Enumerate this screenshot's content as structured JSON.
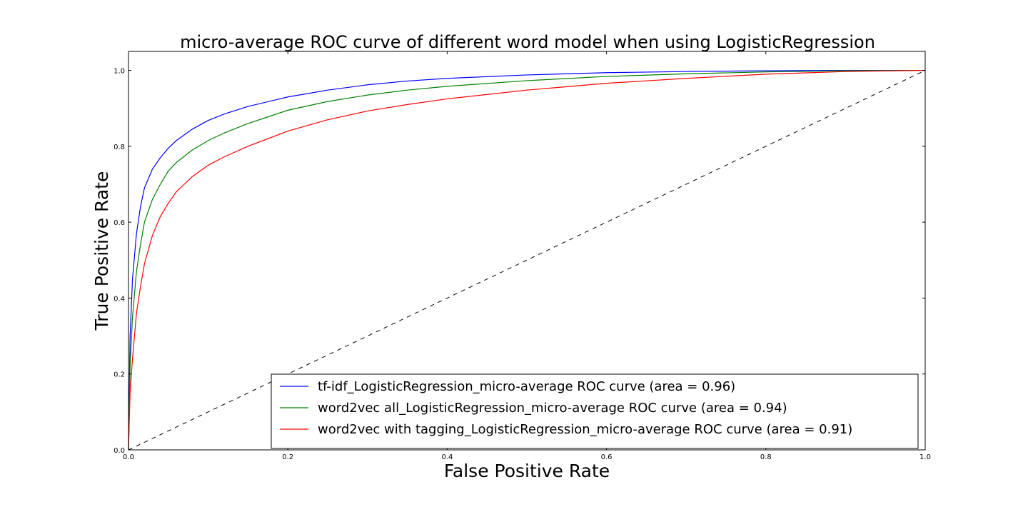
{
  "chart_data": {
    "type": "line",
    "title": "micro-average ROC curve of different word model when using LogisticRegression",
    "xlabel": "False Positive Rate",
    "ylabel": "True Positive Rate",
    "xlim": [
      0.0,
      1.0
    ],
    "ylim": [
      0.0,
      1.05
    ],
    "x_ticks": [
      0.0,
      0.2,
      0.4,
      0.6,
      0.8,
      1.0
    ],
    "y_ticks": [
      0.0,
      0.2,
      0.4,
      0.6,
      0.8,
      1.0
    ],
    "x_tick_labels": [
      "0.0",
      "0.2",
      "0.4",
      "0.6",
      "0.8",
      "1.0"
    ],
    "y_tick_labels": [
      "0.0",
      "0.2",
      "0.4",
      "0.6",
      "0.8",
      "1.0"
    ],
    "grid": false,
    "legend_position": "lower-right",
    "series": [
      {
        "name": "tf-idf_LogisticRegression_micro-average ROC curve (area = 0.96)",
        "color": "#0000ff",
        "x": [
          0.0,
          0.002,
          0.005,
          0.01,
          0.015,
          0.02,
          0.03,
          0.04,
          0.05,
          0.06,
          0.08,
          0.1,
          0.12,
          0.15,
          0.2,
          0.25,
          0.3,
          0.35,
          0.4,
          0.5,
          0.6,
          0.7,
          0.8,
          0.9,
          1.0
        ],
        "y": [
          0.0,
          0.3,
          0.45,
          0.57,
          0.64,
          0.69,
          0.74,
          0.77,
          0.795,
          0.815,
          0.845,
          0.868,
          0.885,
          0.905,
          0.93,
          0.948,
          0.962,
          0.972,
          0.979,
          0.988,
          0.994,
          0.997,
          0.999,
          1.0,
          1.0
        ]
      },
      {
        "name": "word2vec all_LogisticRegression_micro-average ROC curve (area = 0.94)",
        "color": "#008000",
        "x": [
          0.0,
          0.002,
          0.005,
          0.01,
          0.015,
          0.02,
          0.03,
          0.04,
          0.05,
          0.06,
          0.08,
          0.1,
          0.12,
          0.15,
          0.2,
          0.25,
          0.3,
          0.35,
          0.4,
          0.5,
          0.6,
          0.7,
          0.8,
          0.9,
          1.0
        ],
        "y": [
          0.0,
          0.22,
          0.35,
          0.47,
          0.54,
          0.6,
          0.66,
          0.7,
          0.735,
          0.757,
          0.79,
          0.815,
          0.835,
          0.86,
          0.895,
          0.918,
          0.935,
          0.948,
          0.958,
          0.973,
          0.984,
          0.991,
          0.996,
          0.999,
          1.0
        ]
      },
      {
        "name": "word2vec with tagging_LogisticRegression_micro-average ROC curve (area = 0.91)",
        "color": "#ff0000",
        "x": [
          0.0,
          0.002,
          0.005,
          0.01,
          0.015,
          0.02,
          0.03,
          0.04,
          0.05,
          0.06,
          0.08,
          0.1,
          0.12,
          0.15,
          0.2,
          0.25,
          0.3,
          0.35,
          0.4,
          0.5,
          0.6,
          0.7,
          0.8,
          0.9,
          1.0
        ],
        "y": [
          0.0,
          0.15,
          0.24,
          0.36,
          0.43,
          0.49,
          0.565,
          0.615,
          0.65,
          0.68,
          0.72,
          0.75,
          0.772,
          0.8,
          0.84,
          0.87,
          0.893,
          0.91,
          0.925,
          0.948,
          0.966,
          0.979,
          0.99,
          0.997,
          1.0
        ]
      },
      {
        "color": "#000000",
        "dashed": true,
        "x": [
          0.0,
          1.0
        ],
        "y": [
          0.0,
          1.0
        ]
      }
    ]
  }
}
